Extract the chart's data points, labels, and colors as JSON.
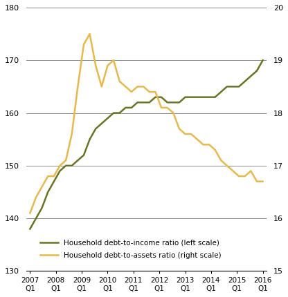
{
  "left_label": "Household debt-to-income ratio (left scale)",
  "right_label": "Household debt-to-assets ratio (right scale)",
  "left_color": "#6B7222",
  "right_color": "#E8B84B",
  "left_ylim": [
    130,
    180
  ],
  "right_ylim": [
    15,
    20
  ],
  "left_yticks": [
    130,
    140,
    150,
    160,
    170,
    180
  ],
  "right_yticks": [
    15,
    16,
    17,
    18,
    19,
    20
  ],
  "xtick_labels": [
    "2007\nQ1",
    "2008\nQ1",
    "2009\nQ1",
    "2010\nQ1",
    "2011\nQ1",
    "2012\nQ1",
    "2013\nQ1",
    "2014\nQ1",
    "2015\nQ1",
    "2016\nQ1"
  ],
  "debt_income": [
    138,
    140,
    142,
    145,
    147,
    149,
    150,
    150,
    151,
    152,
    155,
    157,
    158,
    159,
    160,
    160,
    161,
    161,
    162,
    162,
    162,
    163,
    163,
    162,
    162,
    162,
    163,
    163,
    163,
    163,
    163,
    163,
    164,
    165,
    165,
    165,
    166,
    167,
    168,
    170
  ],
  "debt_assets": [
    16.1,
    16.4,
    16.6,
    16.8,
    16.8,
    17.0,
    17.1,
    17.6,
    18.5,
    19.3,
    19.5,
    18.9,
    18.5,
    18.9,
    19.0,
    18.6,
    18.5,
    18.4,
    18.5,
    18.5,
    18.4,
    18.4,
    18.1,
    18.1,
    18.0,
    17.7,
    17.6,
    17.6,
    17.5,
    17.4,
    17.4,
    17.3,
    17.1,
    17.0,
    16.9,
    16.8,
    16.8,
    16.9,
    16.7,
    16.7
  ],
  "grid_color": "#888888",
  "grid_linewidth": 0.7,
  "line_linewidth": 1.8
}
